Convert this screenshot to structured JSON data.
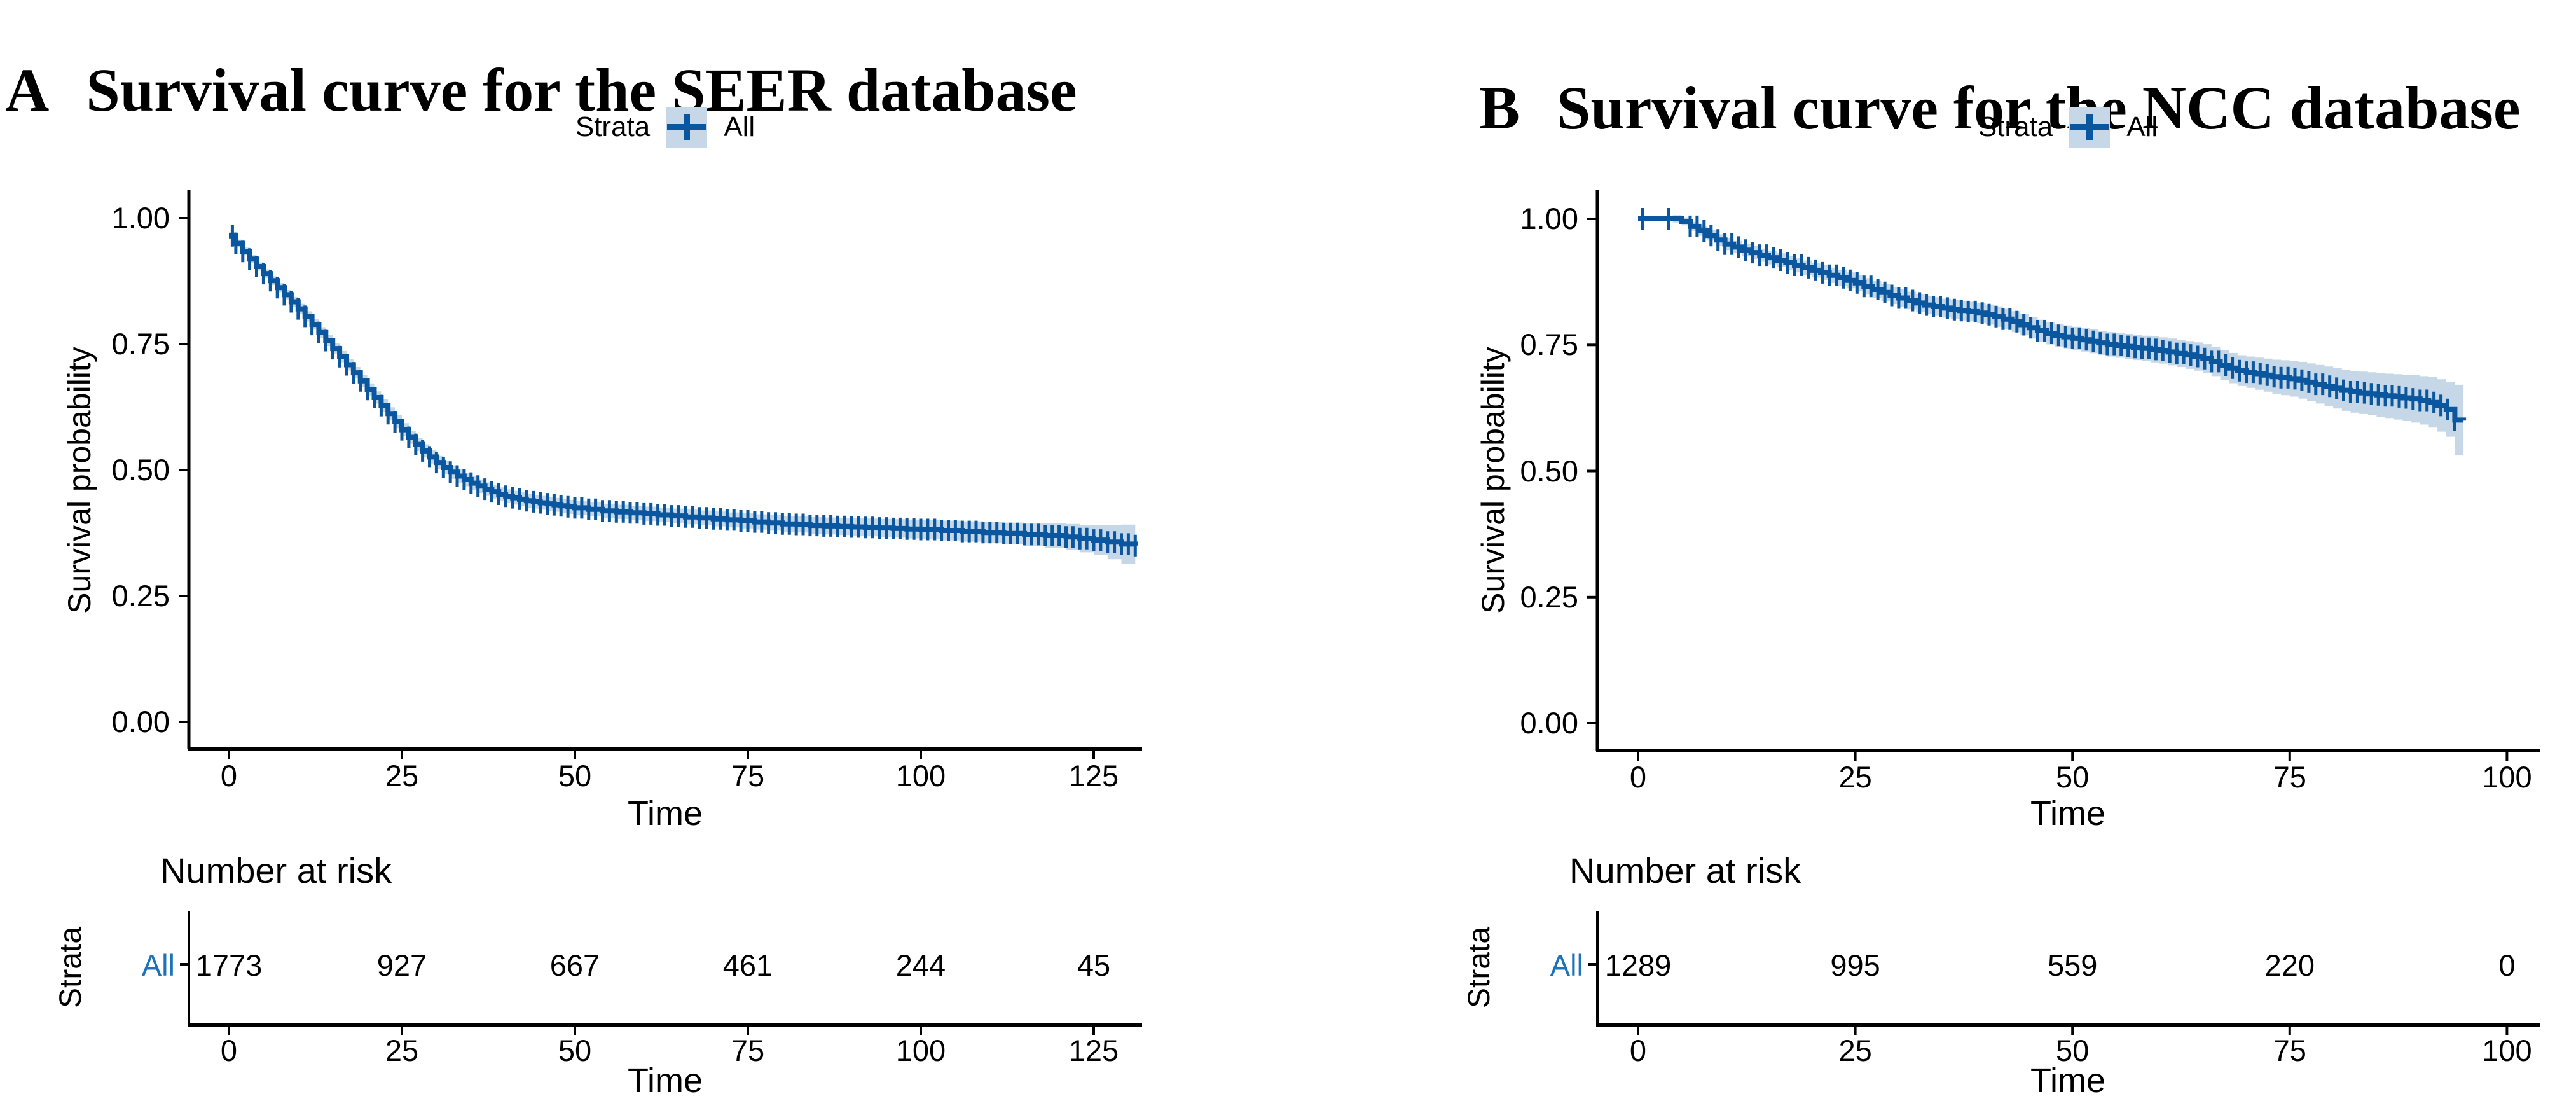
{
  "figure": {
    "background": "#ffffff"
  },
  "colors": {
    "curve": "#0a57a0",
    "ci_band": "#c6d8e8",
    "risk_row_label": "#1d72b8",
    "axis": "#000000",
    "text": "#000000"
  },
  "panels": [
    {
      "label": "A",
      "title": "Survival curve for the SEER database",
      "legend_title": "Strata",
      "legend_item": "All",
      "ylabel": "Survival probability",
      "xlabel": "Time",
      "risk_title": "Number at risk",
      "strata_label": "Strata",
      "risk_row_label": "All"
    },
    {
      "label": "B",
      "title": "Survival curve for the NCC database",
      "legend_title": "Strata",
      "legend_item": "All",
      "ylabel": "Survival probability",
      "xlabel": "Time",
      "risk_title": "Number at risk",
      "strata_label": "Strata",
      "risk_row_label": "All"
    }
  ],
  "chart_data": [
    {
      "type": "line",
      "subtype": "kaplan-meier-step",
      "title": "A Survival curve for the SEER database",
      "xlabel": "Time",
      "ylabel": "Survival probability",
      "xlim": [
        0,
        132
      ],
      "ylim": [
        0,
        1
      ],
      "xticks": [
        0,
        25,
        50,
        75,
        100,
        125
      ],
      "ytick_labels": [
        "1.00",
        "0.75",
        "0.50",
        "0.25",
        "0.00"
      ],
      "ytick_values": [
        1.0,
        0.75,
        0.5,
        0.25,
        0.0
      ],
      "grid": false,
      "legend": {
        "title": "Strata",
        "entries": [
          "All"
        ],
        "position": "top-center"
      },
      "series": [
        {
          "name": "All",
          "color": "#0a57a0",
          "ci_color": "#c6d8e8",
          "points": [
            [
              0,
              0.965
            ],
            [
              1,
              0.95
            ],
            [
              2,
              0.934
            ],
            [
              3,
              0.919
            ],
            [
              4,
              0.904
            ],
            [
              5,
              0.89
            ],
            [
              6,
              0.876
            ],
            [
              7,
              0.862
            ],
            [
              8,
              0.848
            ],
            [
              9,
              0.834
            ],
            [
              10,
              0.82
            ],
            [
              11,
              0.805
            ],
            [
              12,
              0.789
            ],
            [
              13,
              0.773
            ],
            [
              14,
              0.757
            ],
            [
              15,
              0.741
            ],
            [
              16,
              0.725
            ],
            [
              17,
              0.709
            ],
            [
              18,
              0.693
            ],
            [
              19,
              0.677
            ],
            [
              20,
              0.66
            ],
            [
              21,
              0.644
            ],
            [
              22,
              0.628
            ],
            [
              23,
              0.612
            ],
            [
              24,
              0.596
            ],
            [
              25,
              0.58
            ],
            [
              26,
              0.565
            ],
            [
              27,
              0.551
            ],
            [
              28,
              0.538
            ],
            [
              29,
              0.526
            ],
            [
              30,
              0.515
            ],
            [
              31,
              0.505
            ],
            [
              32,
              0.496
            ],
            [
              33,
              0.488
            ],
            [
              34,
              0.481
            ],
            [
              35,
              0.474
            ],
            [
              36,
              0.468
            ],
            [
              37,
              0.462
            ],
            [
              38,
              0.457
            ],
            [
              39,
              0.452
            ],
            [
              40,
              0.448
            ],
            [
              41,
              0.445
            ],
            [
              42,
              0.442
            ],
            [
              43,
              0.439
            ],
            [
              44,
              0.437
            ],
            [
              45,
              0.435
            ],
            [
              46,
              0.433
            ],
            [
              47,
              0.431
            ],
            [
              48,
              0.429
            ],
            [
              49,
              0.427
            ],
            [
              50,
              0.425
            ],
            [
              52,
              0.422
            ],
            [
              54,
              0.419
            ],
            [
              56,
              0.417
            ],
            [
              58,
              0.415
            ],
            [
              60,
              0.413
            ],
            [
              62,
              0.411
            ],
            [
              64,
              0.409
            ],
            [
              66,
              0.407
            ],
            [
              68,
              0.405
            ],
            [
              70,
              0.403
            ],
            [
              72,
              0.401
            ],
            [
              74,
              0.399
            ],
            [
              76,
              0.397
            ],
            [
              78,
              0.395
            ],
            [
              80,
              0.393
            ],
            [
              82,
              0.392
            ],
            [
              84,
              0.39
            ],
            [
              86,
              0.389
            ],
            [
              88,
              0.388
            ],
            [
              90,
              0.387
            ],
            [
              92,
              0.386
            ],
            [
              94,
              0.385
            ],
            [
              96,
              0.384
            ],
            [
              98,
              0.383
            ],
            [
              100,
              0.382
            ],
            [
              103,
              0.38
            ],
            [
              106,
              0.378
            ],
            [
              109,
              0.376
            ],
            [
              112,
              0.374
            ],
            [
              115,
              0.372
            ],
            [
              118,
              0.37
            ],
            [
              121,
              0.367
            ],
            [
              123,
              0.364
            ],
            [
              125,
              0.361
            ],
            [
              127,
              0.357
            ],
            [
              129,
              0.353
            ],
            [
              131,
              0.35
            ]
          ],
          "ci_halfwidth": [
            [
              0,
              0.007
            ],
            [
              10,
              0.01
            ],
            [
              25,
              0.013
            ],
            [
              50,
              0.014
            ],
            [
              75,
              0.015
            ],
            [
              100,
              0.019
            ],
            [
              110,
              0.021
            ],
            [
              118,
              0.024
            ],
            [
              124,
              0.028
            ],
            [
              128,
              0.036
            ],
            [
              131,
              0.044
            ]
          ],
          "censor_marks": {
            "from": 1,
            "to": 131,
            "step": 1,
            "extra": [
              0.5
            ]
          }
        }
      ],
      "number_at_risk": {
        "title": "Number at risk",
        "strata_label": "Strata",
        "row_label": "All",
        "times": [
          0,
          25,
          50,
          75,
          100,
          125
        ],
        "counts": [
          "1773",
          "927",
          "667",
          "461",
          "244",
          "45"
        ]
      }
    },
    {
      "type": "line",
      "subtype": "kaplan-meier-step",
      "title": "B Survival curve for the NCC database",
      "xlabel": "Time",
      "ylabel": "Survival probability",
      "xlim": [
        0,
        104
      ],
      "ylim": [
        0,
        1
      ],
      "xticks": [
        0,
        25,
        50,
        75,
        100
      ],
      "ytick_labels": [
        "1.00",
        "0.75",
        "0.50",
        "0.25",
        "0.00"
      ],
      "ytick_values": [
        1.0,
        0.75,
        0.5,
        0.25,
        0.0
      ],
      "grid": false,
      "legend": {
        "title": "Strata",
        "entries": [
          "All"
        ],
        "position": "top-center"
      },
      "series": [
        {
          "name": "All",
          "color": "#0a57a0",
          "ci_color": "#c6d8e8",
          "points": [
            [
              0,
              1.0
            ],
            [
              4,
              1.0
            ],
            [
              5,
              0.995
            ],
            [
              6,
              0.985
            ],
            [
              7,
              0.976
            ],
            [
              8,
              0.967
            ],
            [
              9,
              0.958
            ],
            [
              10,
              0.95
            ],
            [
              11,
              0.944
            ],
            [
              12,
              0.938
            ],
            [
              13,
              0.933
            ],
            [
              14,
              0.928
            ],
            [
              15,
              0.923
            ],
            [
              16,
              0.918
            ],
            [
              17,
              0.913
            ],
            [
              18,
              0.908
            ],
            [
              19,
              0.903
            ],
            [
              20,
              0.898
            ],
            [
              21,
              0.893
            ],
            [
              22,
              0.888
            ],
            [
              23,
              0.883
            ],
            [
              24,
              0.878
            ],
            [
              25,
              0.873
            ],
            [
              26,
              0.866
            ],
            [
              27,
              0.86
            ],
            [
              28,
              0.854
            ],
            [
              29,
              0.848
            ],
            [
              30,
              0.843
            ],
            [
              31,
              0.838
            ],
            [
              32,
              0.833
            ],
            [
              33,
              0.829
            ],
            [
              34,
              0.826
            ],
            [
              35,
              0.823
            ],
            [
              36,
              0.82
            ],
            [
              37,
              0.818
            ],
            [
              38,
              0.816
            ],
            [
              39,
              0.813
            ],
            [
              40,
              0.81
            ],
            [
              41,
              0.806
            ],
            [
              42,
              0.801
            ],
            [
              43,
              0.796
            ],
            [
              44,
              0.79
            ],
            [
              45,
              0.784
            ],
            [
              46,
              0.778
            ],
            [
              47,
              0.773
            ],
            [
              48,
              0.769
            ],
            [
              49,
              0.766
            ],
            [
              50,
              0.763
            ],
            [
              51,
              0.76
            ],
            [
              52,
              0.757
            ],
            [
              53,
              0.754
            ],
            [
              54,
              0.751
            ],
            [
              55,
              0.749
            ],
            [
              56,
              0.747
            ],
            [
              57,
              0.745
            ],
            [
              58,
              0.743
            ],
            [
              59,
              0.741
            ],
            [
              60,
              0.739
            ],
            [
              61,
              0.736
            ],
            [
              62,
              0.733
            ],
            [
              63,
              0.73
            ],
            [
              64,
              0.727
            ],
            [
              65,
              0.723
            ],
            [
              66,
              0.717
            ],
            [
              67,
              0.71
            ],
            [
              68,
              0.704
            ],
            [
              69,
              0.699
            ],
            [
              70,
              0.696
            ],
            [
              71,
              0.693
            ],
            [
              72,
              0.69
            ],
            [
              73,
              0.687
            ],
            [
              74,
              0.685
            ],
            [
              75,
              0.683
            ],
            [
              76,
              0.68
            ],
            [
              77,
              0.676
            ],
            [
              78,
              0.672
            ],
            [
              79,
              0.668
            ],
            [
              80,
              0.664
            ],
            [
              81,
              0.66
            ],
            [
              82,
              0.657
            ],
            [
              83,
              0.655
            ],
            [
              84,
              0.653
            ],
            [
              85,
              0.651
            ],
            [
              86,
              0.649
            ],
            [
              87,
              0.647
            ],
            [
              88,
              0.645
            ],
            [
              89,
              0.643
            ],
            [
              90,
              0.64
            ],
            [
              91,
              0.636
            ],
            [
              92,
              0.63
            ],
            [
              93,
              0.622
            ],
            [
              94,
              0.601
            ],
            [
              95,
              0.6
            ]
          ],
          "ci_halfwidth": [
            [
              0,
              0.004
            ],
            [
              10,
              0.012
            ],
            [
              25,
              0.016
            ],
            [
              40,
              0.02
            ],
            [
              50,
              0.023
            ],
            [
              60,
              0.026
            ],
            [
              70,
              0.031
            ],
            [
              80,
              0.04
            ],
            [
              86,
              0.044
            ],
            [
              90,
              0.048
            ],
            [
              93,
              0.054
            ],
            [
              94,
              0.07
            ],
            [
              95,
              0.07
            ]
          ],
          "censor_marks": {
            "from": 6,
            "to": 94,
            "step": 0.8,
            "extra": [
              0.5,
              3.5
            ]
          }
        }
      ],
      "number_at_risk": {
        "title": "Number at risk",
        "strata_label": "Strata",
        "row_label": "All",
        "times": [
          0,
          25,
          50,
          75,
          100
        ],
        "counts": [
          "1289",
          "995",
          "559",
          "220",
          "0"
        ]
      }
    }
  ]
}
